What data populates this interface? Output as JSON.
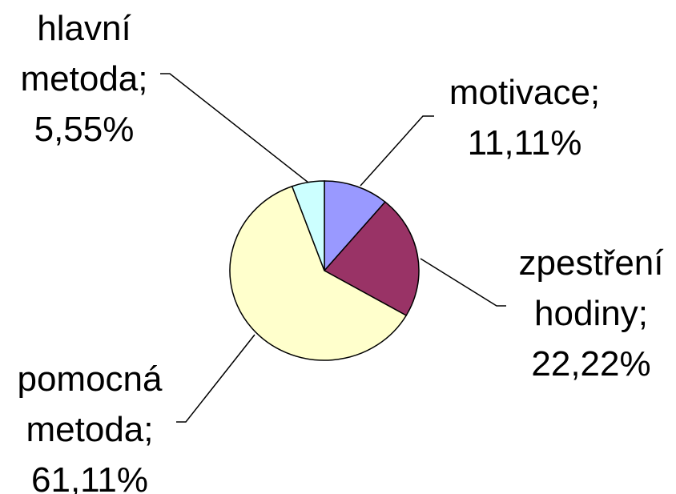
{
  "chart_data": {
    "type": "pie",
    "categories": [
      "motivace;",
      "zpestření hodiny;",
      "pomocná metoda;",
      "hlavní metoda;"
    ],
    "values": [
      11.11,
      22.22,
      61.11,
      5.55
    ],
    "value_labels": [
      "11,11%",
      "22,22%",
      "61,11%",
      "5,55%"
    ],
    "colors": [
      "#9999ff",
      "#993366",
      "#ffffcc",
      "#ccffff"
    ]
  }
}
